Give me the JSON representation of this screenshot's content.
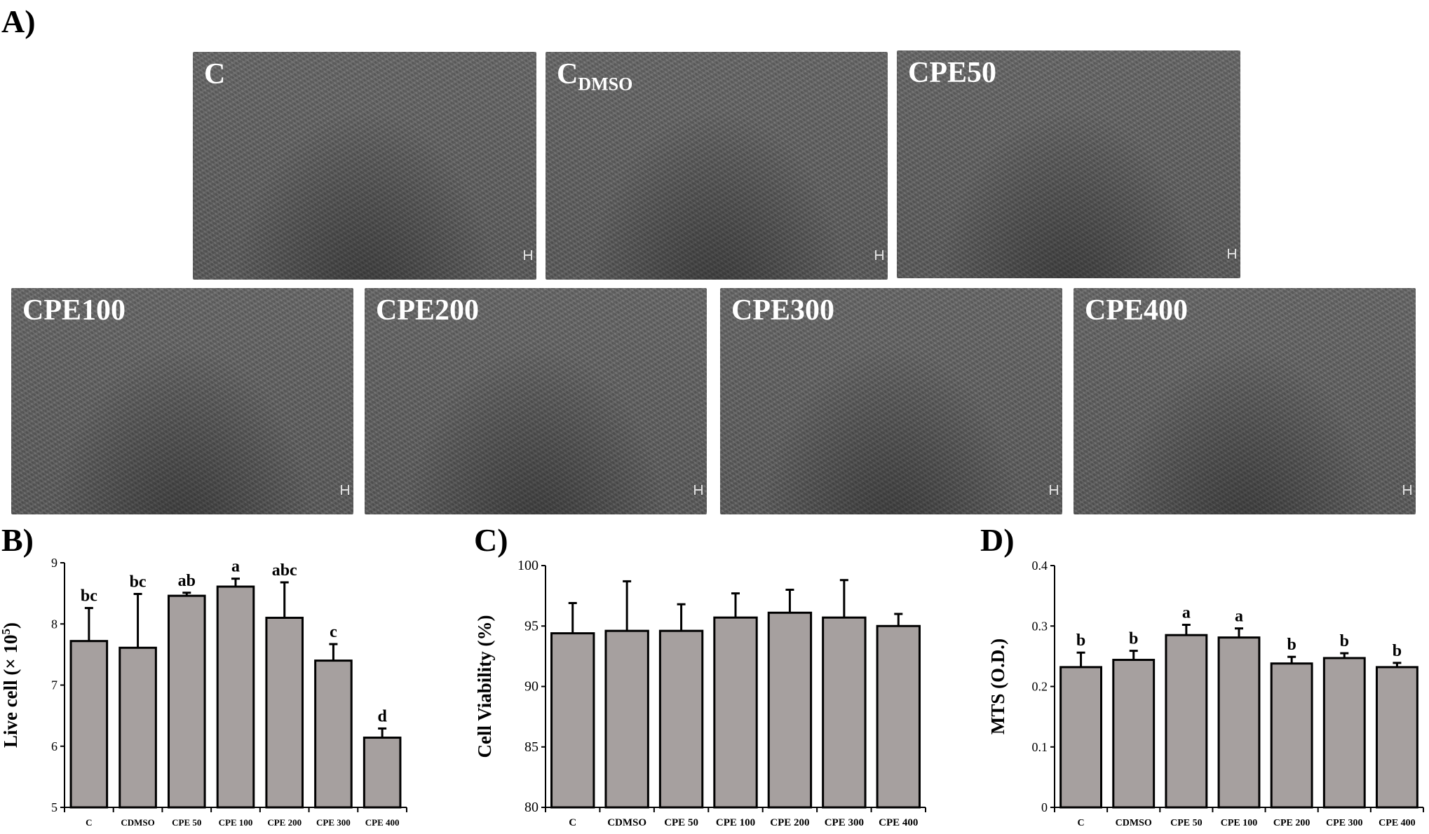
{
  "panels": {
    "A": "A)",
    "B": "B)",
    "C": "C)",
    "D": "D)"
  },
  "micrographs": [
    {
      "label": "C",
      "sub": ""
    },
    {
      "label": "C",
      "sub": "DMSO"
    },
    {
      "label": "CPE50",
      "sub": ""
    },
    {
      "label": "CPE100",
      "sub": ""
    },
    {
      "label": "CPE200",
      "sub": ""
    },
    {
      "label": "CPE300",
      "sub": ""
    },
    {
      "label": "CPE400",
      "sub": ""
    }
  ],
  "colors": {
    "bar": "#a6a09f",
    "stroke": "#000000"
  },
  "chart_data": [
    {
      "id": "B",
      "type": "bar",
      "ylabel_main": "Live cell (× 10",
      "ylabel_sup": "5",
      "ylabel_end": ")",
      "ylim": [
        5,
        9
      ],
      "yticks": [
        "5",
        "6",
        "7",
        "8",
        "9"
      ],
      "categories": [
        "C",
        "CDMSO",
        "CPE 50",
        "CPE 100",
        "CPE 200",
        "CPE 300",
        "CPE 400"
      ],
      "values": [
        7.72,
        7.61,
        8.46,
        8.61,
        8.1,
        7.4,
        6.14
      ],
      "errors": [
        0.54,
        0.88,
        0.05,
        0.13,
        0.58,
        0.27,
        0.15
      ],
      "letters": [
        "bc",
        "bc",
        "ab",
        "a",
        "abc",
        "c",
        "d"
      ]
    },
    {
      "id": "C",
      "type": "bar",
      "ylabel_main": "Cell Viability  (%)",
      "ylabel_sup": "",
      "ylabel_end": "",
      "ylim": [
        80,
        100
      ],
      "yticks": [
        "80",
        "85",
        "90",
        "95",
        "100"
      ],
      "categories": [
        "C",
        "CDMSO",
        "CPE 50",
        "CPE 100",
        "CPE 200",
        "CPE 300",
        "CPE 400"
      ],
      "values": [
        94.4,
        94.6,
        94.6,
        95.7,
        96.1,
        95.7,
        95.0
      ],
      "errors": [
        2.5,
        4.1,
        2.2,
        2.0,
        1.9,
        3.1,
        1.0
      ],
      "letters": [
        "",
        "",
        "",
        "",
        "",
        "",
        ""
      ]
    },
    {
      "id": "D",
      "type": "bar",
      "ylabel_main": "MTS (O.D.)",
      "ylabel_sup": "",
      "ylabel_end": "",
      "ylim": [
        0,
        0.4
      ],
      "yticks": [
        "0",
        "0.1",
        "0.2",
        "0.3",
        "0.4"
      ],
      "categories": [
        "C",
        "CDMSO",
        "CPE 50",
        "CPE 100",
        "CPE 200",
        "CPE 300",
        "CPE 400"
      ],
      "values": [
        0.232,
        0.244,
        0.285,
        0.281,
        0.238,
        0.247,
        0.232
      ],
      "errors": [
        0.024,
        0.015,
        0.017,
        0.015,
        0.011,
        0.008,
        0.007
      ],
      "letters": [
        "b",
        "b",
        "a",
        "a",
        "b",
        "b",
        "b"
      ]
    }
  ]
}
